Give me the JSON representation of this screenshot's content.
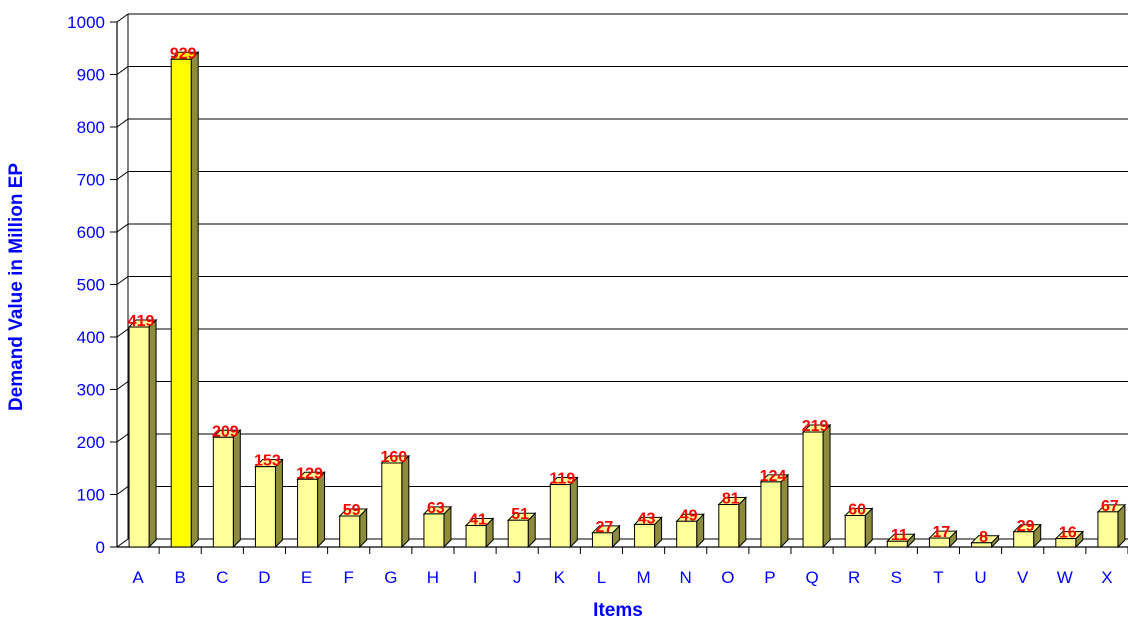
{
  "chart_data": {
    "type": "bar",
    "categories": [
      "A",
      "B",
      "C",
      "D",
      "E",
      "F",
      "G",
      "H",
      "I",
      "J",
      "K",
      "L",
      "M",
      "N",
      "O",
      "P",
      "Q",
      "R",
      "S",
      "T",
      "U",
      "V",
      "W",
      "X"
    ],
    "values": [
      419,
      929,
      209,
      153,
      129,
      59,
      160,
      63,
      41,
      51,
      119,
      27,
      43,
      49,
      81,
      124,
      219,
      60,
      11,
      17,
      8,
      29,
      16,
      67
    ],
    "value_labels": [
      "419",
      "929",
      "209",
      "153",
      "129",
      "59",
      "160",
      "63",
      "41",
      "51",
      "119",
      "27",
      "43",
      "49",
      "81",
      "124",
      "219",
      "60",
      "11",
      "17",
      "8",
      "29",
      "16",
      "67"
    ],
    "highlight_index": 1,
    "xlabel": "Items",
    "ylabel": "Demand Value in Million EP",
    "ylim": [
      0,
      1000
    ],
    "yticks": [
      "0",
      "100",
      "200",
      "300",
      "400",
      "500",
      "600",
      "700",
      "800",
      "900",
      "1000"
    ],
    "grid": true,
    "three_d": true,
    "colors": {
      "bar_fill": "#ffff99",
      "bar_highlight": "#ffff00",
      "bar_edge": "#000000",
      "tick_text": "#0000ff",
      "data_label": "#ff0000",
      "grid": "#000000"
    }
  }
}
